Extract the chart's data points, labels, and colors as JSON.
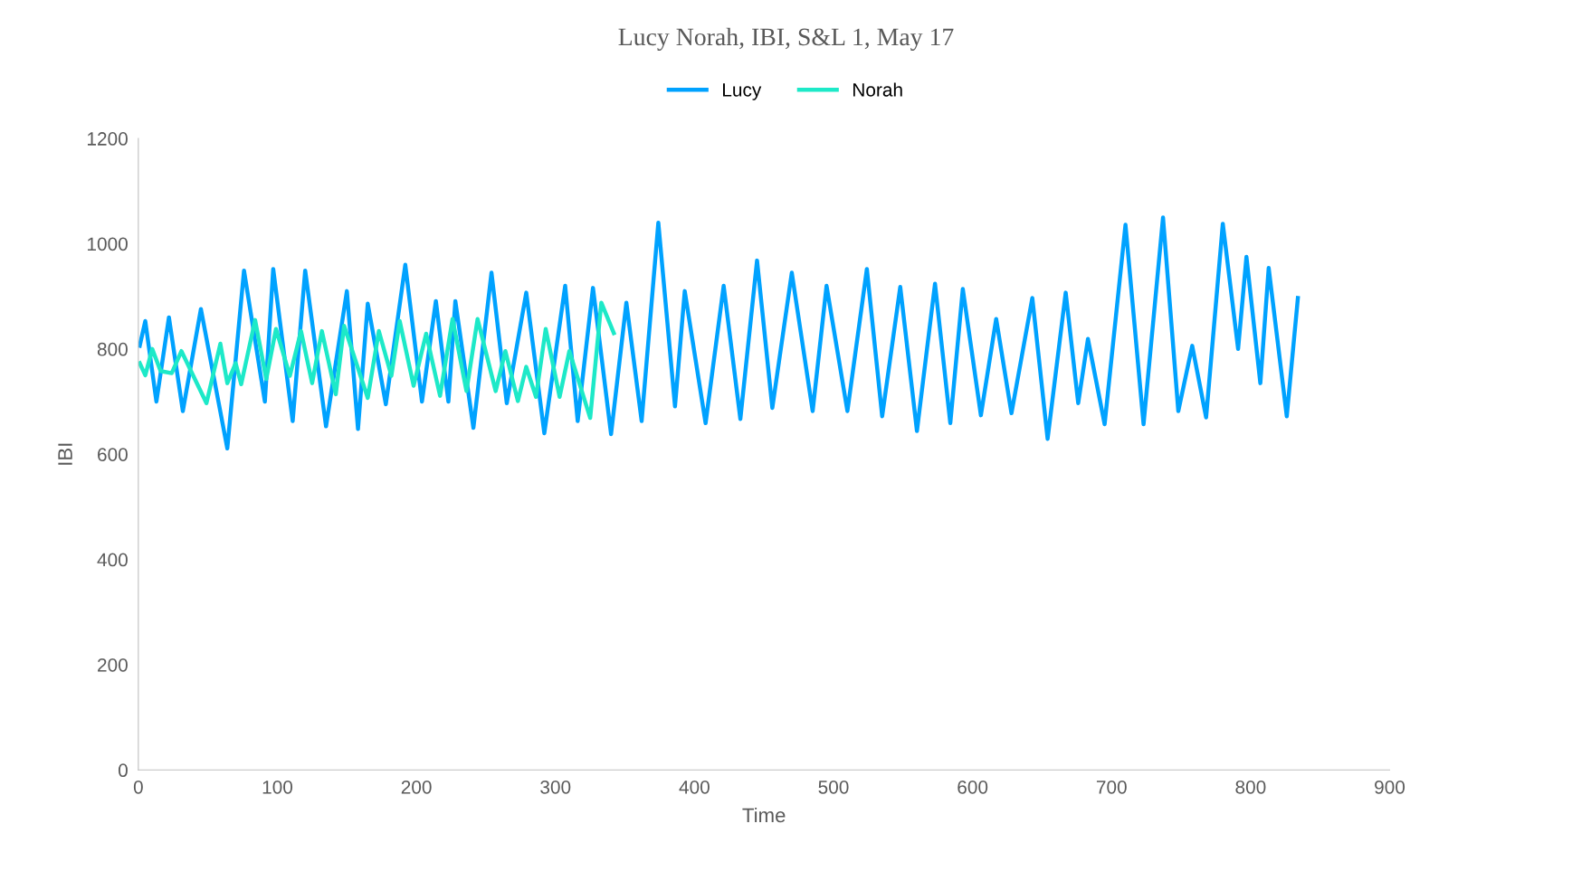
{
  "chart_data": {
    "type": "line",
    "title": "Lucy Norah, IBI, S&L 1, May 17",
    "xlabel": "Time",
    "ylabel": "IBI",
    "xlim": [
      0,
      900
    ],
    "xticks": [
      0,
      100,
      200,
      300,
      400,
      500,
      600,
      700,
      800,
      900
    ],
    "ylim": [
      0,
      1200
    ],
    "yticks": [
      0,
      200,
      400,
      600,
      800,
      1000,
      1200
    ],
    "grid": false,
    "legend": "top",
    "marker": "none",
    "line_style": "solid",
    "series": [
      {
        "name": "Lucy",
        "color": "#00a2ff",
        "x": [
          1,
          5,
          13,
          22,
          32,
          45,
          64,
          76,
          91,
          97,
          111,
          120,
          135,
          150,
          158,
          165,
          178,
          192,
          204,
          214,
          223,
          228,
          241,
          254,
          265,
          279,
          292,
          307,
          316,
          327,
          340,
          351,
          362,
          374,
          386,
          393,
          408,
          421,
          433,
          445,
          456,
          470,
          485,
          495,
          510,
          524,
          535,
          548,
          560,
          573,
          584,
          593,
          606,
          617,
          628,
          643,
          654,
          667,
          676,
          683,
          695,
          710,
          723,
          737,
          748,
          758,
          768,
          780,
          791,
          797,
          807,
          813,
          826,
          834
        ],
        "values": [
          806,
          853,
          700,
          860,
          682,
          876,
          611,
          949,
          700,
          952,
          663,
          949,
          653,
          910,
          648,
          886,
          695,
          960,
          700,
          891,
          700,
          891,
          650,
          945,
          697,
          907,
          640,
          920,
          663,
          916,
          638,
          888,
          663,
          1040,
          691,
          910,
          659,
          920,
          667,
          968,
          688,
          945,
          682,
          920,
          682,
          952,
          672,
          918,
          644,
          924,
          659,
          914,
          674,
          857,
          678,
          897,
          629,
          907,
          697,
          819,
          657,
          1036,
          657,
          1050,
          682,
          806,
          670,
          1038,
          800,
          975,
          735,
          954,
          672,
          897
        ]
      },
      {
        "name": "Norah",
        "color": "#1de9c8",
        "x": [
          1,
          5,
          10,
          16,
          24,
          31,
          49,
          59,
          64,
          70,
          74,
          84,
          92,
          99,
          109,
          117,
          125,
          132,
          142,
          148,
          165,
          173,
          182,
          188,
          198,
          207,
          217,
          226,
          236,
          244,
          257,
          264,
          273,
          279,
          286,
          293,
          303,
          310,
          325,
          333,
          342
        ],
        "values": [
          773,
          750,
          800,
          758,
          754,
          796,
          697,
          810,
          735,
          773,
          733,
          855,
          743,
          838,
          749,
          834,
          735,
          834,
          714,
          844,
          707,
          834,
          749,
          853,
          730,
          829,
          711,
          857,
          720,
          857,
          720,
          796,
          701,
          766,
          709,
          838,
          709,
          796,
          669,
          888,
          830
        ]
      }
    ]
  }
}
